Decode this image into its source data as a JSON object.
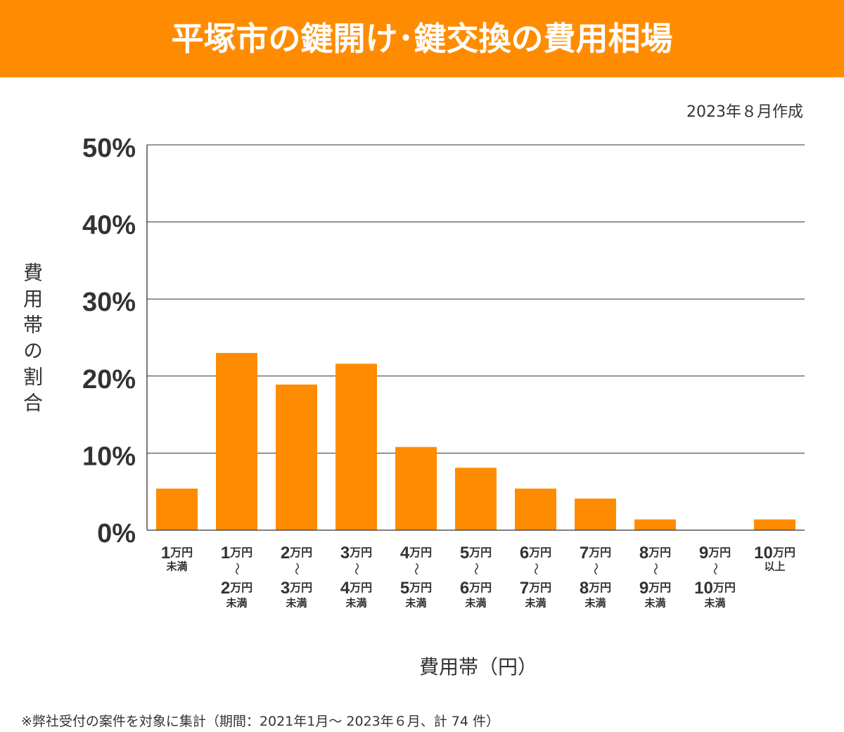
{
  "header": {
    "bg_color": "#FF8C00",
    "text_color": "#FFFFFF"
  },
  "date_note": "2023年８月作成",
  "footnote": "※弊社受付の案件を対象に集計（期間：2021年1月～ 2023年６月、計 74 件）",
  "chart_data": {
    "type": "bar",
    "title": "平塚市の鍵開け･鍵交換の費用相場",
    "xlabel": "費用帯（円）",
    "ylabel": "費用帯の割合",
    "categories": [
      "1万円未満",
      "1万円～2万円未満",
      "2万円～3万円未満",
      "3万円～4万円未満",
      "4万円～5万円未満",
      "5万円～6万円未満",
      "6万円～7万円未満",
      "7万円～8万円未満",
      "8万円～9万円未満",
      "9万円～10万円未満",
      "10万円以上"
    ],
    "values": [
      5.4,
      23.0,
      18.9,
      21.6,
      10.8,
      8.1,
      5.4,
      4.1,
      1.4,
      0,
      1.4
    ],
    "unit": "%",
    "ylim": [
      0,
      50
    ],
    "yticks": [
      0,
      10,
      20,
      30,
      40,
      50
    ],
    "ytick_labels": [
      "0%",
      "10%",
      "20%",
      "30%",
      "40%",
      "50%"
    ],
    "grid": true,
    "legend": "none",
    "bar_color": "#FF8C00",
    "grid_color": "#333333"
  }
}
